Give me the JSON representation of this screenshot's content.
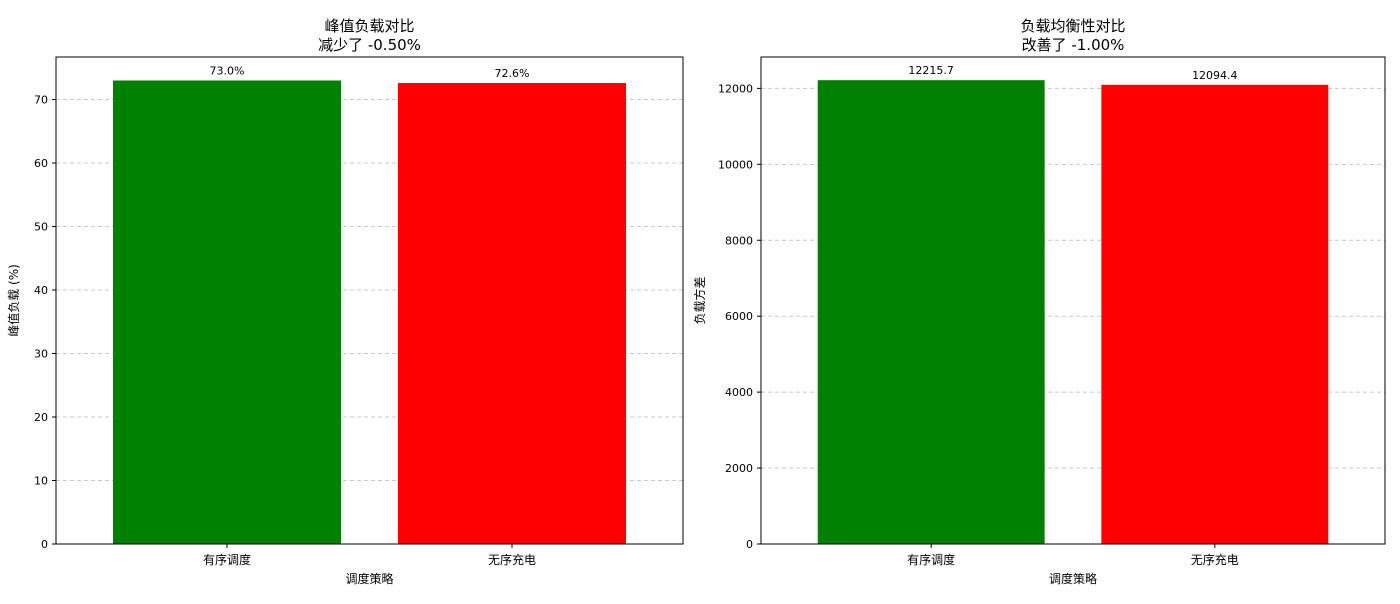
{
  "chart_data": [
    {
      "type": "bar",
      "title": [
        "峰值负载对比",
        "减少了 -0.50%"
      ],
      "xlabel": "调度策略",
      "ylabel": "峰值负载 (%)",
      "categories": [
        "有序调度",
        "无序充电"
      ],
      "values": [
        73.0,
        72.6
      ],
      "value_labels": [
        "73.0%",
        "72.6%"
      ],
      "colors": [
        "#008000",
        "#ff0000"
      ],
      "ylim": [
        0,
        76.7
      ],
      "yticks": [
        0,
        10,
        20,
        30,
        40,
        50,
        60,
        70
      ],
      "ytick_labels": [
        "0",
        "10",
        "20",
        "30",
        "40",
        "50",
        "60",
        "70"
      ],
      "grid": "y-dashed"
    },
    {
      "type": "bar",
      "title": [
        "负载均衡性对比",
        "改善了 -1.00%"
      ],
      "xlabel": "调度策略",
      "ylabel": "负载方差",
      "categories": [
        "有序调度",
        "无序充电"
      ],
      "values": [
        12215.7,
        12094.4
      ],
      "value_labels": [
        "12215.7",
        "12094.4"
      ],
      "colors": [
        "#008000",
        "#ff0000"
      ],
      "ylim": [
        0,
        12826.5
      ],
      "yticks": [
        0,
        2000,
        4000,
        6000,
        8000,
        10000,
        12000
      ],
      "ytick_labels": [
        "0",
        "2000",
        "4000",
        "6000",
        "8000",
        "10000",
        "12000"
      ],
      "grid": "y-dashed"
    }
  ]
}
